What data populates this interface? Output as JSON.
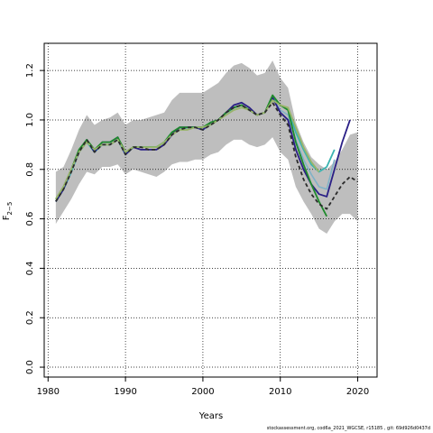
{
  "chart_data": {
    "type": "line",
    "title": "",
    "xlabel": "Years",
    "ylabel": "F",
    "ylabel_subscript": "2−5",
    "xlim": [
      1979.5,
      2022.5
    ],
    "ylim": [
      -0.04,
      1.31
    ],
    "xticks": [
      "1980",
      "1990",
      "2000",
      "2010",
      "2020"
    ],
    "yticks": [
      "0.0",
      "0.2",
      "0.4",
      "0.6",
      "0.8",
      "1.0",
      "1.2"
    ],
    "grid": true,
    "band": {
      "color": "#bebebe",
      "x": [
        1981,
        1982,
        1983,
        1984,
        1985,
        1986,
        1987,
        1988,
        1989,
        1990,
        1991,
        1992,
        1993,
        1994,
        1995,
        1996,
        1997,
        1998,
        1999,
        2000,
        2001,
        2002,
        2003,
        2004,
        2005,
        2006,
        2007,
        2008,
        2009,
        2010,
        2011,
        2012,
        2013,
        2014,
        2015,
        2016,
        2017,
        2018,
        2019,
        2020
      ],
      "upper": [
        0.79,
        0.81,
        0.88,
        0.96,
        1.02,
        0.98,
        1.0,
        1.01,
        1.03,
        0.98,
        1.0,
        1.0,
        1.01,
        1.02,
        1.03,
        1.08,
        1.11,
        1.11,
        1.11,
        1.11,
        1.13,
        1.15,
        1.19,
        1.22,
        1.23,
        1.21,
        1.18,
        1.19,
        1.24,
        1.17,
        1.13,
        0.99,
        0.91,
        0.85,
        0.82,
        0.8,
        0.83,
        0.88,
        0.94,
        0.95
      ],
      "lower": [
        0.58,
        0.63,
        0.68,
        0.74,
        0.79,
        0.78,
        0.81,
        0.81,
        0.82,
        0.78,
        0.8,
        0.79,
        0.78,
        0.77,
        0.79,
        0.82,
        0.83,
        0.83,
        0.84,
        0.84,
        0.86,
        0.87,
        0.9,
        0.92,
        0.92,
        0.9,
        0.89,
        0.9,
        0.93,
        0.87,
        0.84,
        0.73,
        0.67,
        0.62,
        0.56,
        0.54,
        0.59,
        0.62,
        0.62,
        0.59
      ]
    },
    "series": [
      {
        "color": "#7fb2c8",
        "width": 1.6,
        "dash": "",
        "x": [
          1981,
          1982,
          1983,
          1984,
          1985,
          1986,
          1987,
          1988,
          1989,
          1990,
          1991,
          1992,
          1993,
          1994,
          1995,
          1996,
          1997,
          1998,
          1999,
          2000,
          2001,
          2002,
          2003,
          2004,
          2005,
          2006,
          2007,
          2008,
          2009,
          2010,
          2011,
          2012,
          2013,
          2014,
          2015,
          2016,
          2017
        ],
        "values": [
          0.67,
          0.72,
          0.79,
          0.87,
          0.91,
          0.87,
          0.9,
          0.9,
          0.92,
          0.86,
          0.89,
          0.89,
          0.89,
          0.89,
          0.91,
          0.94,
          0.96,
          0.97,
          0.97,
          0.96,
          0.98,
          1.0,
          1.02,
          1.05,
          1.06,
          1.04,
          1.02,
          1.03,
          1.09,
          1.04,
          1.02,
          0.92,
          0.84,
          0.78,
          0.73,
          0.72,
          0.84
        ]
      },
      {
        "color": "#3bb3b0",
        "width": 1.8,
        "dash": "",
        "x": [
          1981,
          1982,
          1983,
          1984,
          1985,
          1986,
          1987,
          1988,
          1989,
          1990,
          1991,
          1992,
          1993,
          1994,
          1995,
          1996,
          1997,
          1998,
          1999,
          2000,
          2001,
          2002,
          2003,
          2004,
          2005,
          2006,
          2007,
          2008,
          2009,
          2010,
          2011,
          2012,
          2013,
          2014,
          2015,
          2016,
          2017
        ],
        "values": [
          0.67,
          0.72,
          0.79,
          0.87,
          0.91,
          0.87,
          0.9,
          0.9,
          0.92,
          0.86,
          0.89,
          0.89,
          0.89,
          0.89,
          0.91,
          0.95,
          0.96,
          0.97,
          0.97,
          0.97,
          0.98,
          1.0,
          1.03,
          1.05,
          1.06,
          1.04,
          1.02,
          1.03,
          1.09,
          1.06,
          1.04,
          0.95,
          0.88,
          0.82,
          0.79,
          0.81,
          0.88
        ]
      },
      {
        "color": "#2a1f86",
        "width": 1.8,
        "dash": "",
        "x": [
          1981,
          1982,
          1983,
          1984,
          1985,
          1986,
          1987,
          1988,
          1989,
          1990,
          1991,
          1992,
          1993,
          1994,
          1995,
          1996,
          1997,
          1998,
          1999,
          2000,
          2001,
          2002,
          2003,
          2004,
          2005,
          2006,
          2007,
          2008,
          2009,
          2010,
          2011,
          2012,
          2013,
          2014,
          2015,
          2016,
          2017,
          2018,
          2019
        ],
        "values": [
          0.67,
          0.72,
          0.8,
          0.87,
          0.92,
          0.87,
          0.91,
          0.91,
          0.93,
          0.86,
          0.89,
          0.88,
          0.88,
          0.88,
          0.9,
          0.94,
          0.97,
          0.97,
          0.97,
          0.96,
          0.99,
          1.0,
          1.03,
          1.06,
          1.07,
          1.05,
          1.02,
          1.03,
          1.09,
          1.03,
          1.0,
          0.88,
          0.8,
          0.74,
          0.7,
          0.69,
          0.8,
          0.91,
          1.0
        ]
      },
      {
        "color": "#1f8a2c",
        "width": 1.8,
        "dash": "",
        "x": [
          1981,
          1982,
          1983,
          1984,
          1985,
          1986,
          1987,
          1988,
          1989,
          1990,
          1991,
          1992,
          1993,
          1994,
          1995,
          1996,
          1997,
          1998,
          1999,
          2000,
          2001,
          2002,
          2003,
          2004,
          2005,
          2006,
          2007,
          2008,
          2009,
          2010,
          2011,
          2012,
          2013,
          2014,
          2015,
          2016
        ],
        "values": [
          0.68,
          0.73,
          0.8,
          0.88,
          0.92,
          0.88,
          0.91,
          0.91,
          0.93,
          0.87,
          0.89,
          0.89,
          0.89,
          0.89,
          0.91,
          0.95,
          0.97,
          0.97,
          0.97,
          0.97,
          0.99,
          1.0,
          1.03,
          1.05,
          1.06,
          1.04,
          1.02,
          1.03,
          1.1,
          1.06,
          1.04,
          0.91,
          0.82,
          0.74,
          0.67,
          0.61
        ]
      },
      {
        "color": "#9ab56a",
        "width": 1.8,
        "dash": "",
        "x": [
          1981,
          1982,
          1983,
          1984,
          1985,
          1986,
          1987,
          1988,
          1989,
          1990,
          1991,
          1992,
          1993,
          1994,
          1995,
          1996,
          1997,
          1998,
          1999,
          2000,
          2001,
          2002,
          2003,
          2004,
          2005,
          2006,
          2007,
          2008,
          2009,
          2010,
          2011,
          2012,
          2013,
          2014,
          2015
        ],
        "values": [
          0.68,
          0.73,
          0.8,
          0.87,
          0.91,
          0.88,
          0.9,
          0.9,
          0.92,
          0.87,
          0.89,
          0.89,
          0.89,
          0.89,
          0.91,
          0.94,
          0.96,
          0.96,
          0.97,
          0.97,
          0.98,
          1.0,
          1.02,
          1.04,
          1.05,
          1.04,
          1.02,
          1.03,
          1.08,
          1.06,
          1.05,
          0.97,
          0.89,
          0.83,
          0.79
        ]
      },
      {
        "color": "#2b2b2b",
        "width": 1.8,
        "dash": "4,3",
        "x": [
          1981,
          1982,
          1983,
          1984,
          1985,
          1986,
          1987,
          1988,
          1989,
          1990,
          1991,
          1992,
          1993,
          1994,
          1995,
          1996,
          1997,
          1998,
          1999,
          2000,
          2001,
          2002,
          2003,
          2004,
          2005,
          2006,
          2007,
          2008,
          2009,
          2010,
          2011,
          2012,
          2013,
          2014,
          2015,
          2016,
          2017,
          2018,
          2019,
          2020
        ],
        "values": [
          0.67,
          0.72,
          0.79,
          0.87,
          0.92,
          0.87,
          0.9,
          0.9,
          0.92,
          0.86,
          0.89,
          0.89,
          0.88,
          0.88,
          0.9,
          0.94,
          0.96,
          0.97,
          0.97,
          0.96,
          0.98,
          1.0,
          1.03,
          1.05,
          1.06,
          1.04,
          1.02,
          1.03,
          1.07,
          1.02,
          0.98,
          0.85,
          0.76,
          0.7,
          0.66,
          0.64,
          0.69,
          0.74,
          0.77,
          0.75
        ]
      }
    ]
  },
  "footer": "stockassessment.org, cod6a_2021_WGCSE, r15185 , git: 69d926d0437d"
}
